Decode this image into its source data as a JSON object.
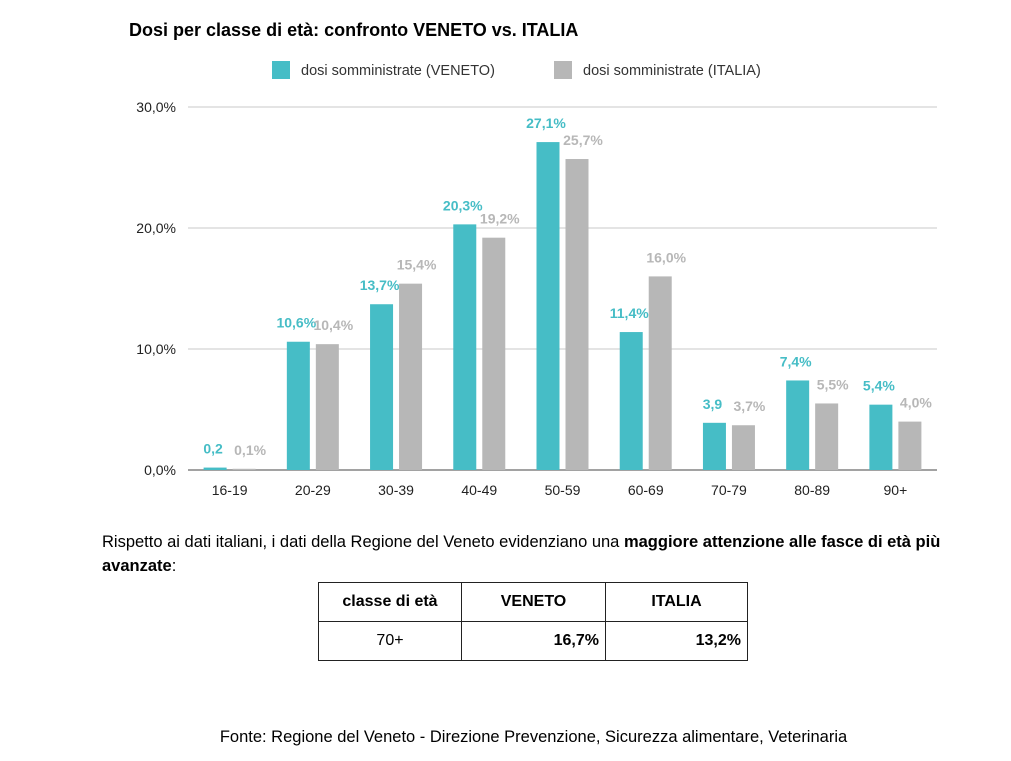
{
  "chart_data": {
    "type": "bar",
    "title": "Dosi per classe di età: confronto VENETO vs. ITALIA",
    "categories": [
      "16-19",
      "20-29",
      "30-39",
      "40-49",
      "50-59",
      "60-69",
      "70-79",
      "80-89",
      "90+"
    ],
    "series": [
      {
        "name": "dosi somministrate (VENETO)",
        "color": "#46bdc6",
        "values": [
          0.2,
          10.6,
          13.7,
          20.3,
          27.1,
          11.4,
          3.9,
          7.4,
          5.4
        ],
        "labels": [
          "0,2",
          "10,6%",
          "13,7%",
          "20,3%",
          "27,1%",
          "11,4%",
          "3,9",
          "7,4%",
          "5,4%"
        ]
      },
      {
        "name": "dosi somministrate (ITALIA)",
        "color": "#b7b7b7",
        "values": [
          0.1,
          10.4,
          15.4,
          19.2,
          25.7,
          16.0,
          3.7,
          5.5,
          4.0
        ],
        "labels": [
          "0,1%",
          "10,4%",
          "15,4%",
          "19,2%",
          "25,7%",
          "16,0%",
          "3,7%",
          "5,5%",
          "4,0%"
        ]
      }
    ],
    "ylim": [
      0,
      30
    ],
    "yticks": [
      0,
      10,
      20,
      30
    ],
    "ytick_labels": [
      "0,0%",
      "10,0%",
      "20,0%",
      "30,0%"
    ],
    "grid": true,
    "legend": "top"
  },
  "text": {
    "para_pre": "Rispetto ai dati italiani, i dati della Regione del Veneto evidenziano una ",
    "para_bold": "maggiore attenzione alle fasce di età più avanzate",
    "para_post": ":",
    "source": "Fonte: Regione del Veneto - Direzione Prevenzione, Sicurezza alimentare, Veterinaria"
  },
  "table": {
    "headers": [
      "classe di età",
      "VENETO",
      "ITALIA"
    ],
    "row": {
      "label": "70+",
      "veneto": "16,7%",
      "italia": "13,2%"
    }
  }
}
